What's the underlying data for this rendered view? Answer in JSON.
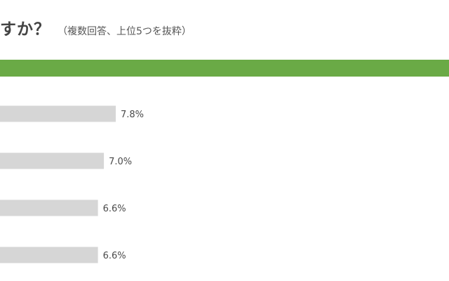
{
  "header": {
    "title": "すか？",
    "subtitle": "（複数回答、上位5つを抜粋）"
  },
  "colors": {
    "accent_bar": "#6aaa46",
    "bar_fill": "#d6d6d6"
  },
  "chart_data": {
    "type": "bar",
    "orientation": "horizontal",
    "title": "",
    "xlabel": "",
    "ylabel": "",
    "unit": "%",
    "categories": [
      "",
      "",
      "",
      ""
    ],
    "values": [
      7.8,
      7.0,
      6.6,
      6.6
    ],
    "labels": [
      "7.8%",
      "7.0%",
      "6.6%",
      "6.6%"
    ],
    "xlim": [
      0,
      7.8
    ],
    "grid": false,
    "legend": false
  }
}
